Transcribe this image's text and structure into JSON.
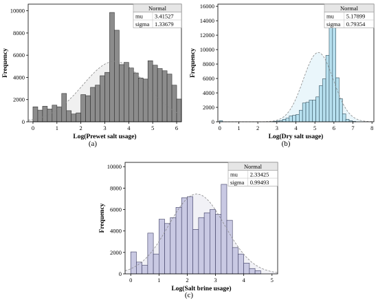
{
  "panel_captions": [
    "(a)",
    "(b)",
    "(c)"
  ],
  "legend_labels": {
    "title": "Normal",
    "mu": "mu",
    "sigma": "sigma"
  },
  "chart_data": [
    {
      "type": "bar",
      "title": "",
      "xlabel": "Log(Prewet salt usage)",
      "ylabel": "Frequency",
      "xlim": [
        -0.2,
        6.2
      ],
      "ylim": [
        0,
        10600
      ],
      "xticks": [
        0,
        1,
        2,
        3,
        4,
        5,
        6
      ],
      "yticks": [
        0,
        2000,
        4000,
        6000,
        8000,
        10000
      ],
      "bin_start": 0,
      "bin_width": 0.2,
      "values": [
        1350,
        1050,
        1400,
        1150,
        1500,
        1350,
        2550,
        1000,
        700,
        800,
        2450,
        2350,
        3100,
        3300,
        4150,
        4450,
        9850,
        8250,
        5150,
        5350,
        4850,
        4400,
        3950,
        3850,
        5500,
        5100,
        4800,
        4600,
        4300,
        3300,
        2050
      ],
      "bar_color": "#8c8c8c",
      "bar_edge": "#2e2e2e",
      "fit": {
        "dist": "Normal",
        "mu": "3.41527",
        "sigma": "1.33679",
        "peak": 5450
      },
      "fill_color": "#f0f0f0"
    },
    {
      "type": "bar",
      "title": "",
      "xlabel": "Log(Dry salt usage)",
      "ylabel": "Frequency",
      "xlim": [
        -0.1,
        8.1
      ],
      "ylim": [
        0,
        16300
      ],
      "xticks": [
        0,
        1,
        2,
        3,
        4,
        5,
        6,
        7,
        8
      ],
      "yticks": [
        0,
        2000,
        4000,
        6000,
        8000,
        10000,
        12000,
        14000,
        16000
      ],
      "bin_start": -0.025,
      "bin_width": 0.175,
      "values": [
        150,
        0,
        0,
        0,
        0,
        0,
        0,
        0,
        0,
        0,
        0,
        0,
        0,
        0,
        0,
        0,
        50,
        100,
        150,
        350,
        500,
        800,
        900,
        1000,
        1600,
        2600,
        2700,
        3000,
        3000,
        3450,
        5000,
        5950,
        9200,
        15500,
        14550,
        6100,
        3200,
        1100,
        350,
        150,
        50
      ],
      "bar_color": "#b7e0ef",
      "bar_edge": "#2e4c5a",
      "fit": {
        "dist": "Normal",
        "mu": "5.17899",
        "sigma": "0.79354",
        "peak": 9600
      },
      "fill_color": "#eaf6fb"
    },
    {
      "type": "bar",
      "title": "",
      "xlabel": "Log(Salt brine usage)",
      "ylabel": "Frequency",
      "xlim": [
        -0.2,
        5.2
      ],
      "ylim": [
        0,
        10400
      ],
      "xticks": [
        0,
        1,
        2,
        3,
        4,
        5
      ],
      "yticks": [
        0,
        2000,
        4000,
        6000,
        8000,
        10000
      ],
      "bin_start": 0,
      "bin_width": 0.2,
      "values": [
        2050,
        1100,
        800,
        3800,
        1850,
        5100,
        4700,
        5250,
        6200,
        7100,
        7200,
        4150,
        5250,
        5700,
        6000,
        5550,
        8350,
        5000,
        2450,
        1850,
        1000,
        500,
        300
      ],
      "bar_color": "#c9c9e3",
      "bar_edge": "#3a3a60",
      "fit": {
        "dist": "Normal",
        "mu": "2.33425",
        "sigma": "0.99493",
        "peak": 7450
      },
      "fill_color": "#f1f1f6"
    }
  ]
}
